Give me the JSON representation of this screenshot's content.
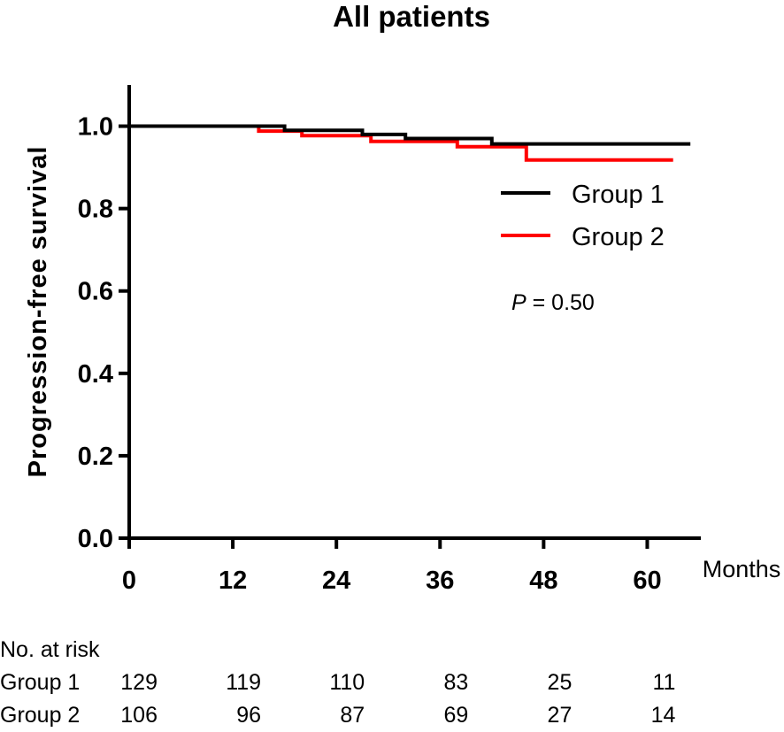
{
  "chart_data": {
    "type": "line",
    "subtype": "kaplan-meier",
    "title": "All patients",
    "xlabel": "Months",
    "ylabel": "Progression-free survival",
    "xlim": [
      0,
      66
    ],
    "ylim": [
      0,
      1.1
    ],
    "xticks": [
      0,
      12,
      24,
      36,
      48,
      60
    ],
    "xtick_labels": [
      "0",
      "12",
      "24",
      "36",
      "48",
      "60"
    ],
    "yticks": [
      0,
      0.2,
      0.4,
      0.6,
      0.8,
      1.0
    ],
    "ytick_labels": [
      "0.0",
      "0.2",
      "0.4",
      "0.6",
      "0.8",
      "1.0"
    ],
    "series": [
      {
        "name": "Group 1",
        "color": "#000000",
        "x": [
          0,
          18,
          18,
          27,
          27,
          32,
          32,
          42,
          42,
          65
        ],
        "y": [
          1.0,
          1.0,
          0.99,
          0.99,
          0.98,
          0.98,
          0.97,
          0.97,
          0.957,
          0.957
        ]
      },
      {
        "name": "Group 2",
        "color": "#ff0000",
        "x": [
          15,
          15,
          20,
          20,
          28,
          28,
          38,
          38,
          46,
          46,
          63
        ],
        "y": [
          1.0,
          0.988,
          0.988,
          0.977,
          0.977,
          0.963,
          0.963,
          0.95,
          0.95,
          0.918,
          0.918
        ]
      }
    ],
    "legend_position": "right",
    "annotation": {
      "italic": "P",
      "text": " = 0.50"
    },
    "risk_table": {
      "header": "No. at risk",
      "times": [
        0,
        12,
        24,
        36,
        48,
        60
      ],
      "rows": [
        {
          "label": "Group 1",
          "values": [
            "129",
            "119",
            "110",
            "83",
            "25",
            "11"
          ]
        },
        {
          "label": "Group 2",
          "values": [
            "106",
            "96",
            "87",
            "69",
            "27",
            "14"
          ]
        }
      ]
    }
  }
}
